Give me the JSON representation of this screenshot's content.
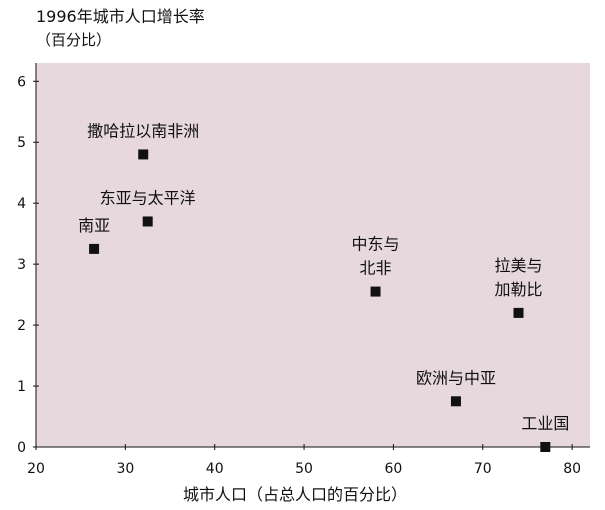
{
  "chart_data": {
    "type": "scatter",
    "title": "1996年城市人口增长率",
    "subtitle": "（百分比）",
    "xlabel": "城市人口（占总人口的百分比）",
    "ylabel": "",
    "xlim": [
      20,
      82
    ],
    "ylim": [
      0,
      6.3
    ],
    "xticks": [
      20,
      30,
      40,
      50,
      60,
      70,
      80
    ],
    "yticks": [
      0,
      1,
      2,
      3,
      4,
      5,
      6
    ],
    "grid": false,
    "points": [
      {
        "name": "撒哈拉以南非洲",
        "lines": [
          "撒哈拉以南非洲"
        ],
        "x": 32.0,
        "y": 4.8,
        "label_pos": "above"
      },
      {
        "name": "东亚与太平洋",
        "lines": [
          "东亚与太平洋"
        ],
        "x": 32.5,
        "y": 3.7,
        "label_pos": "above"
      },
      {
        "name": "南亚",
        "lines": [
          "南亚"
        ],
        "x": 26.5,
        "y": 3.25,
        "label_pos": "above"
      },
      {
        "name": "中东与北非",
        "lines": [
          "中东与",
          "北非"
        ],
        "x": 58.0,
        "y": 2.55,
        "label_pos": "above"
      },
      {
        "name": "拉美与加勒比",
        "lines": [
          "拉美与",
          "加勒比"
        ],
        "x": 74.0,
        "y": 2.2,
        "label_pos": "above"
      },
      {
        "name": "欧洲与中亚",
        "lines": [
          "欧洲与中亚"
        ],
        "x": 67.0,
        "y": 0.75,
        "label_pos": "above"
      },
      {
        "name": "工业国",
        "lines": [
          "工业国"
        ],
        "x": 77.0,
        "y": 0.0,
        "label_pos": "above"
      }
    ]
  }
}
